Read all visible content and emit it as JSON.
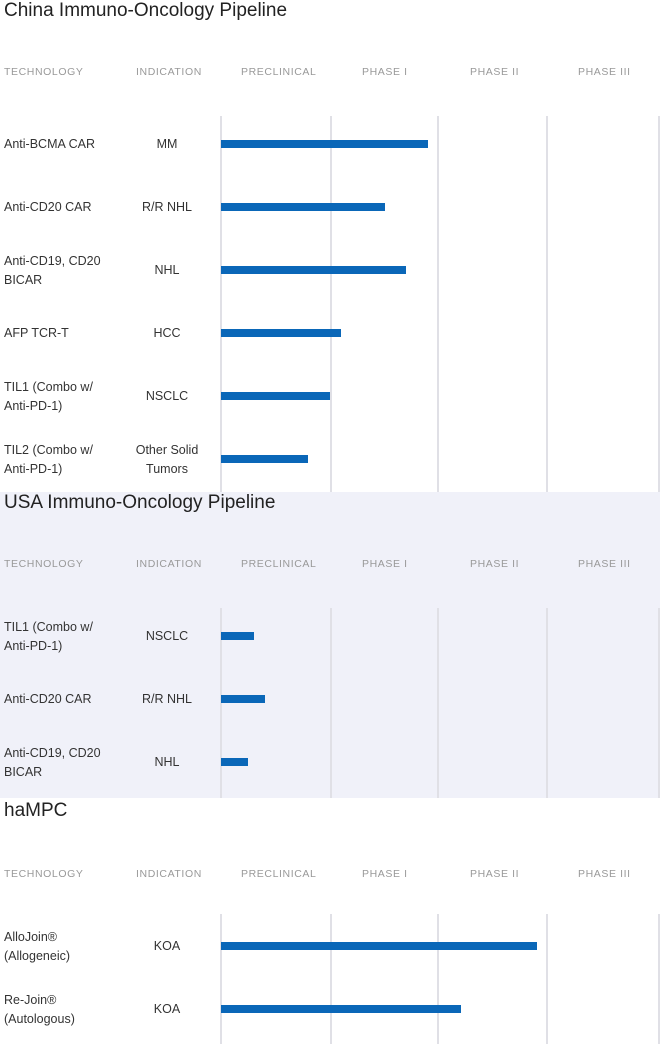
{
  "colors": {
    "bar": "#0a67b8",
    "usa_background": "#f0f1f9",
    "gridline": "#e0e0e6"
  },
  "headers": [
    "TECHNOLOGY",
    "INDICATION",
    "PRECLINICAL",
    "PHASE I",
    "PHASE II",
    "PHASE III"
  ],
  "stages": [
    "PRECLINICAL",
    "PHASE I",
    "PHASE II",
    "PHASE III"
  ],
  "sections": [
    {
      "title": "China Immuno-Oncology Pipeline",
      "rows": [
        {
          "tech": "Anti-BCMA CAR",
          "indication": "MM",
          "progress_stages": 1.9
        },
        {
          "tech": "Anti-CD20 CAR",
          "indication": "R/R NHL",
          "progress_stages": 1.5
        },
        {
          "tech": "Anti-CD19, CD20 BICAR",
          "indication": "NHL",
          "progress_stages": 1.7
        },
        {
          "tech": "AFP TCR-T",
          "indication": "HCC",
          "progress_stages": 1.1
        },
        {
          "tech": "TIL1 (Combo w/ Anti-PD-1)",
          "indication": "NSCLC",
          "progress_stages": 1.0
        },
        {
          "tech": "TIL2 (Combo w/ Anti-PD-1)",
          "indication": "Other Solid Tumors",
          "progress_stages": 0.8
        }
      ]
    },
    {
      "title": "USA Immuno-Oncology Pipeline",
      "rows": [
        {
          "tech": "TIL1 (Combo w/ Anti-PD-1)",
          "indication": "NSCLC",
          "progress_stages": 0.3
        },
        {
          "tech": "Anti-CD20 CAR",
          "indication": "R/R NHL",
          "progress_stages": 0.4
        },
        {
          "tech": "Anti-CD19, CD20 BICAR",
          "indication": "NHL",
          "progress_stages": 0.25
        }
      ]
    },
    {
      "title": "haMPC",
      "rows": [
        {
          "tech": "AlloJoin® (Allogeneic)",
          "indication": "KOA",
          "progress_stages": 2.9
        },
        {
          "tech": "Re-Join® (Autologous)",
          "indication": "KOA",
          "progress_stages": 2.2
        }
      ]
    }
  ]
}
